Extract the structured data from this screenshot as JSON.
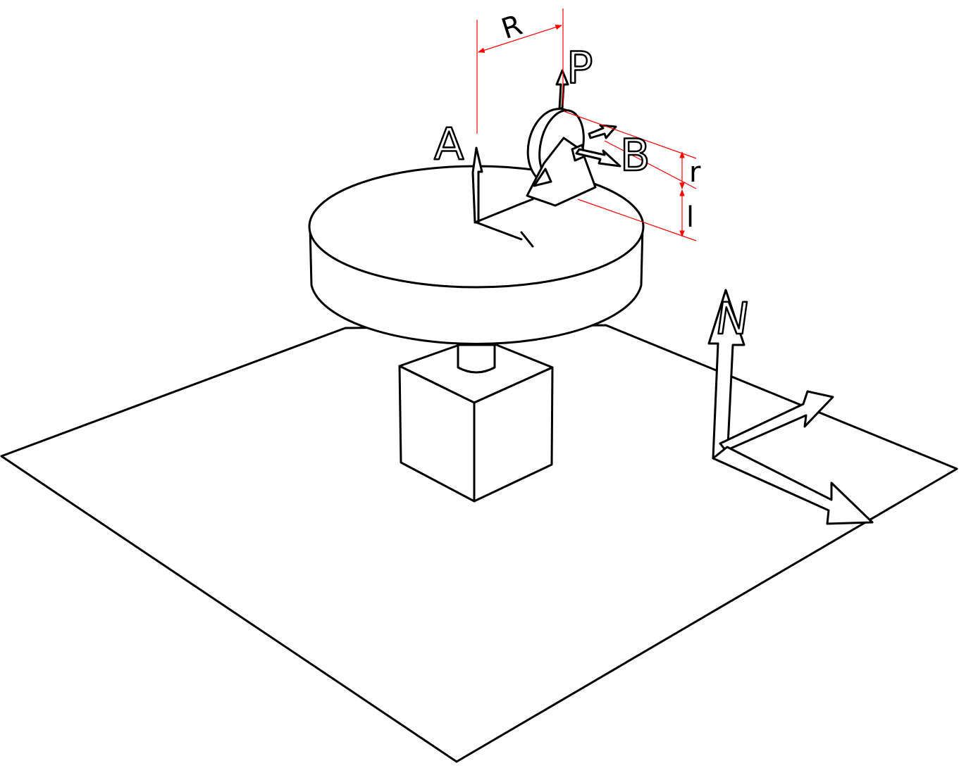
{
  "labels": {
    "R": "R",
    "P": "P",
    "A": "A",
    "B": "B",
    "r": "r",
    "l": "l",
    "N": "N"
  },
  "colors": {
    "ink": "#000000",
    "dimension": "#ff0000",
    "background": "#ffffff"
  }
}
